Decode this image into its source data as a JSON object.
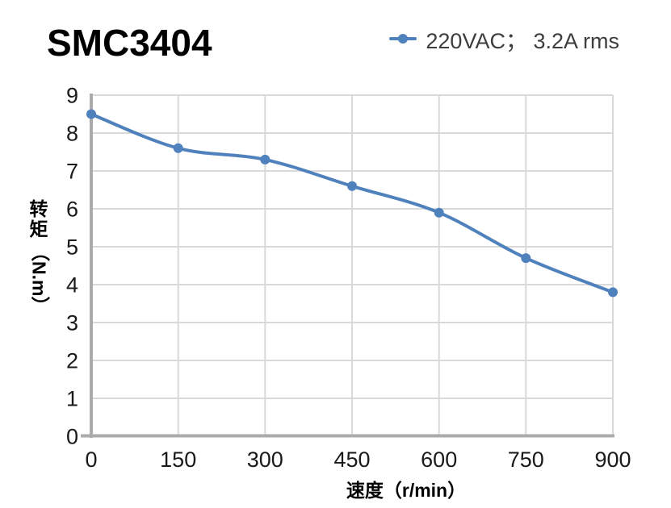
{
  "page": {
    "background": "#FFFFFF"
  },
  "header": {
    "title": "SMC3404"
  },
  "legend": {
    "label": "220VAC； 3.2A rms"
  },
  "chart_data": {
    "type": "line",
    "title": "SMC3404",
    "xlabel": "速度（r/min）",
    "ylabel": "转矩（N.m）",
    "xlim": [
      0,
      900
    ],
    "ylim": [
      0,
      9
    ],
    "x_ticks": [
      0,
      150,
      300,
      450,
      600,
      750,
      900
    ],
    "y_ticks": [
      0,
      1,
      2,
      3,
      4,
      5,
      6,
      7,
      8,
      9
    ],
    "grid": true,
    "legend_position": "top-right",
    "series": [
      {
        "name": "220VAC； 3.2A rms",
        "color": "#4F81BD",
        "marker": "circle",
        "smooth": true,
        "x": [
          0,
          150,
          300,
          450,
          600,
          750,
          900
        ],
        "values": [
          8.5,
          7.6,
          7.3,
          6.6,
          5.9,
          4.7,
          3.8
        ]
      }
    ],
    "colors": {
      "grid": "#D9D9D9",
      "axis": "#ABABAB",
      "tick_text": "#1A1A1A"
    }
  },
  "ylabel_render": {
    "stack": [
      "转",
      "矩"
    ],
    "unit": "（N.m）"
  }
}
